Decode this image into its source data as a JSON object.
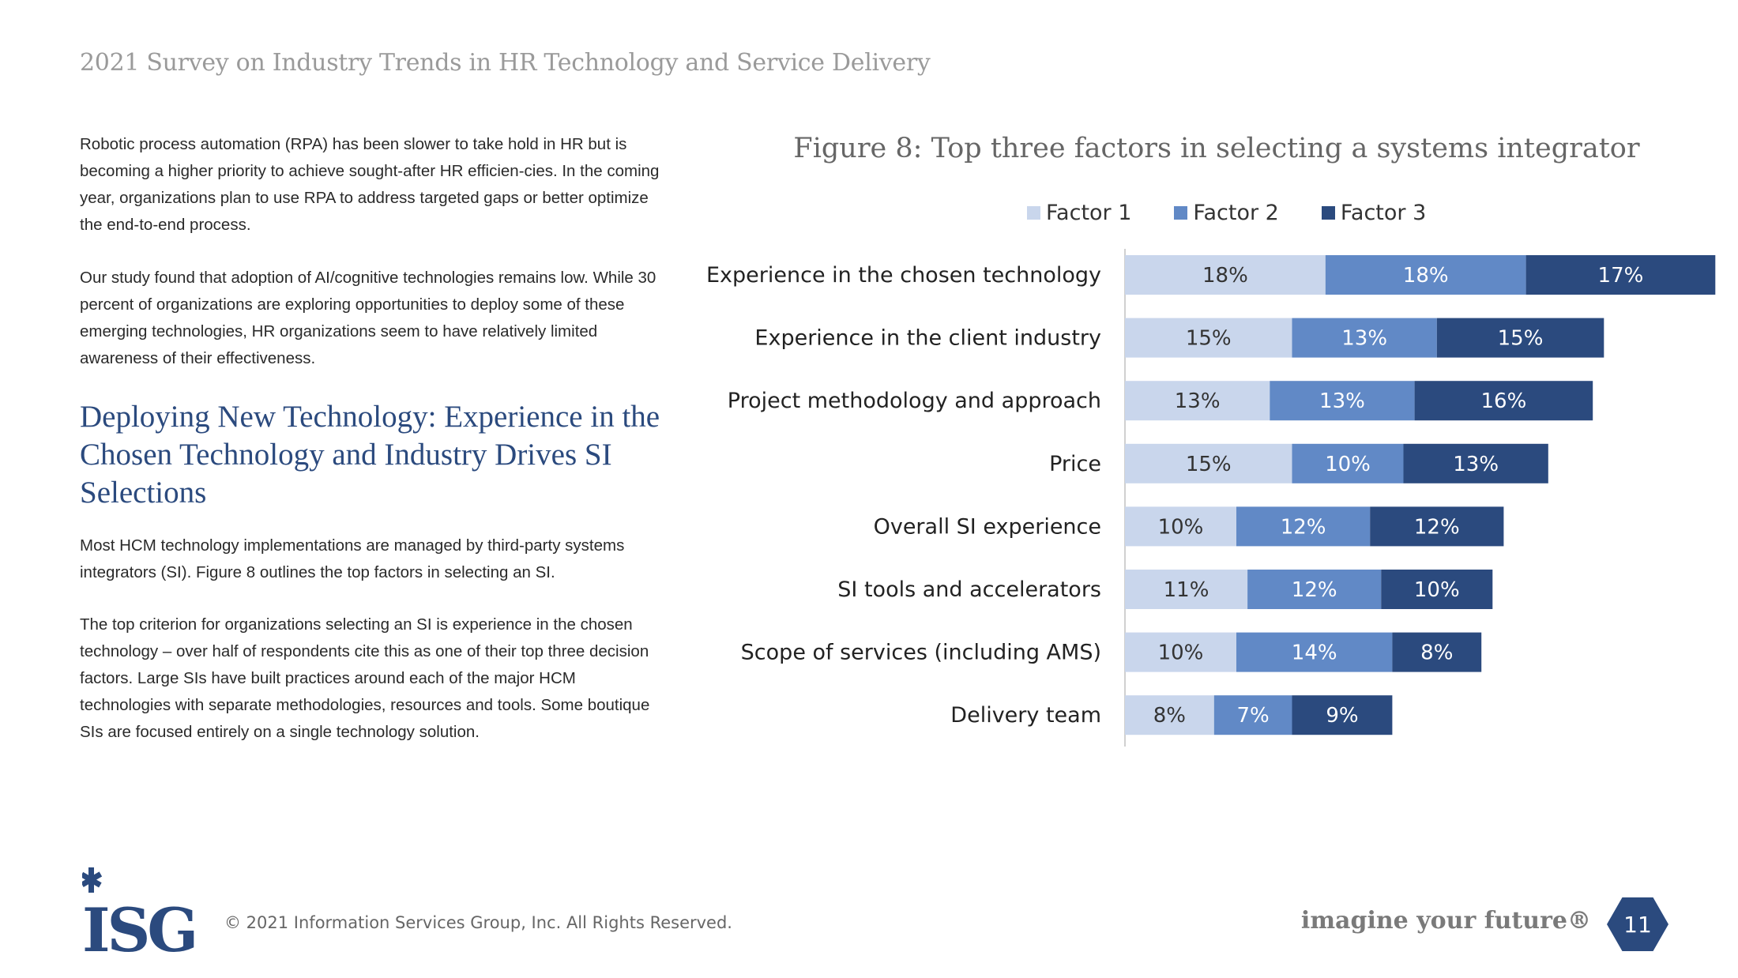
{
  "header": {
    "title": "2021 Survey on Industry Trends in HR Technology and Service Delivery"
  },
  "body": {
    "paragraphs_top": [
      "Robotic process automation (RPA) has been slower to take hold in HR but is becoming a higher priority to achieve sought-after HR efficien-cies. In the coming year, organizations plan to use RPA to address targeted gaps or better optimize the end-to-end process.",
      "Our study found that adoption of AI/cognitive technologies remains low. While 30 percent of organizations are exploring opportunities to deploy some of these emerging technologies, HR organizations seem to have relatively limited awareness of their effectiveness."
    ],
    "heading": "Deploying New Technology: Experience in the Chosen Technology and Industry Drives SI Selections",
    "paragraphs_bottom": [
      "Most HCM technology implementations are managed by third-party systems integrators (SI). Figure 8 outlines the top factors in selecting an SI.",
      "The top criterion for organizations selecting an SI is experience in the chosen technology – over half of respondents cite this as one of their top three decision factors. Large SIs have built practices around each of the major HCM technologies with separate methodologies, resources and tools. Some boutique SIs are focused entirely on a single technology solution."
    ]
  },
  "chart_data": {
    "type": "bar",
    "orientation": "horizontal",
    "stacked": true,
    "title": "Figure 8: Top three factors in selecting a systems integrator",
    "legend_position": "top",
    "grid": false,
    "categories": [
      "Experience in the chosen technology",
      "Experience in the client industry",
      "Project methodology and approach",
      "Price",
      "Overall SI experience",
      "SI tools and accelerators",
      "Scope of services (including AMS)",
      "Delivery team"
    ],
    "series": [
      {
        "name": "Factor 1",
        "color": "#c9d6ec",
        "label_color": "#333333",
        "values": [
          18,
          15,
          13,
          15,
          10,
          11,
          10,
          8
        ]
      },
      {
        "name": "Factor 2",
        "color": "#6189c6",
        "label_color": "#ffffff",
        "values": [
          18,
          13,
          13,
          10,
          12,
          12,
          14,
          7
        ]
      },
      {
        "name": "Factor 3",
        "color": "#2b4a7e",
        "label_color": "#ffffff",
        "values": [
          17,
          15,
          16,
          13,
          12,
          10,
          8,
          9
        ]
      }
    ],
    "value_suffix": "%"
  },
  "footer": {
    "logo_text": "ISG",
    "copyright": "© 2021 Information Services Group, Inc. All Rights Reserved.",
    "tagline": "imagine your future®",
    "page_number": "11"
  },
  "colors": {
    "brand": "#2b4a7e",
    "header_grey": "#9a9a9a"
  }
}
